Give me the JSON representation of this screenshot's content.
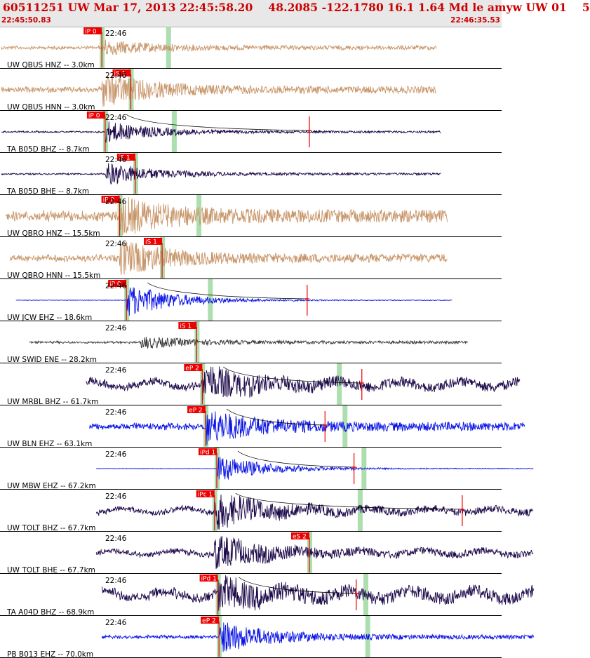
{
  "header": {
    "title": "60511251 UW Mar 17, 2013 22:45:58.20    48.2085 -122.1780 16.1 1.64 Md le amyw UW 01    5",
    "start_time": "22:45:50.83",
    "end_time": "22:46:35.53"
  },
  "time_window": {
    "start": "22:45:50.83",
    "end": "22:46:35.53",
    "duration_s": 44.7,
    "minute_marker": "22:46"
  },
  "colors": {
    "background": "#ffffff",
    "header_bg": "#e8e8e8",
    "header_text": "#cc0000",
    "pick_flag": "#ee0000",
    "pick_band": "#9fd8a0",
    "trace_tan": "#c8966a",
    "trace_navy": "#1d0a4a",
    "trace_blue": "#0a14e6",
    "trace_gray": "#3a3a3a",
    "coda_line": "#000000",
    "separator": "#000000"
  },
  "traces": [
    {
      "label": "UW QBUS HNZ -- 3.0km",
      "marker": "22:46",
      "color": "tan",
      "picks": [
        {
          "label": "iP 0",
          "t": 9.0
        }
      ],
      "start_t": 0.0,
      "end_t": 39.0,
      "onset_t": 9.0,
      "amp": 3,
      "peak": 10,
      "has_coda": false
    },
    {
      "label": "UW QBUS HNN -- 3.0km",
      "marker": "22:46",
      "color": "tan",
      "picks": [
        {
          "label": "iS 1",
          "t": 11.6
        }
      ],
      "start_t": 0.0,
      "end_t": 39.0,
      "onset_t": 9.0,
      "amp": 5,
      "peak": 22,
      "has_coda": false
    },
    {
      "label": "TA B05D BHZ -- 8.7km",
      "marker": "22:46",
      "color": "navy",
      "picks": [
        {
          "label": "iP 0",
          "t": 9.3
        }
      ],
      "start_t": 0.0,
      "end_t": 39.4,
      "onset_t": 9.3,
      "amp": 1.5,
      "peak": 15,
      "has_coda": true,
      "coda_end_t": 27.6
    },
    {
      "label": "TA B05D BHE -- 8.7km",
      "marker": "22:46",
      "color": "navy",
      "picks": [
        {
          "label": "iS 1",
          "t": 12.0
        }
      ],
      "start_t": 0.0,
      "end_t": 39.4,
      "onset_t": 9.3,
      "amp": 1.5,
      "peak": 16,
      "has_coda": false
    },
    {
      "label": "UW QBRO HNZ -- 15.5km",
      "marker": "22:46",
      "color": "tan",
      "picks": [
        {
          "label": "iP 0",
          "t": 10.6
        }
      ],
      "start_t": 0.4,
      "end_t": 40.0,
      "onset_t": 10.6,
      "amp": 9,
      "peak": 22,
      "has_coda": false
    },
    {
      "label": "UW QBRO HNN -- 15.5km",
      "marker": "22:46",
      "color": "tan",
      "picks": [
        {
          "label": "iS 1",
          "t": 14.4
        }
      ],
      "start_t": 0.8,
      "end_t": 40.0,
      "onset_t": 10.6,
      "amp": 6,
      "peak": 22,
      "has_coda": false
    },
    {
      "label": "UW JCW EHZ -- 18.6km",
      "marker": "22:46",
      "color": "blue",
      "picks": [
        {
          "label": "iP 0",
          "t": 11.2
        }
      ],
      "start_t": 1.3,
      "end_t": 40.4,
      "onset_t": 11.2,
      "amp": 0.5,
      "peak": 24,
      "has_coda": true,
      "coda_end_t": 27.4
    },
    {
      "label": "UW SWID ENE -- 28.2km",
      "marker": "22:46",
      "color": "gray",
      "picks": [
        {
          "label": "iS 1",
          "t": 17.5
        }
      ],
      "start_t": 2.5,
      "end_t": 41.8,
      "onset_t": 12.5,
      "amp": 2,
      "peak": 8,
      "has_coda": false
    },
    {
      "label": "UW MRBL BHZ -- 61.7km",
      "marker": "22:46",
      "color": "navy",
      "picks": [
        {
          "label": "eP 2",
          "t": 18.0
        }
      ],
      "start_t": 7.6,
      "end_t": 46.5,
      "onset_t": 18.0,
      "amp": 7,
      "peak": 22,
      "has_coda": true,
      "coda_end_t": 32.3
    },
    {
      "label": "UW BLN EHZ -- 63.1km",
      "marker": "22:46",
      "color": "blue",
      "picks": [
        {
          "label": "eP 2",
          "t": 18.3
        }
      ],
      "start_t": 7.9,
      "end_t": 46.9,
      "onset_t": 18.3,
      "amp": 6,
      "peak": 22,
      "has_coda": true,
      "coda_end_t": 29.0
    },
    {
      "label": "UW MBW EHZ -- 67.2km",
      "marker": "22:46",
      "color": "blue",
      "picks": [
        {
          "label": "iPd 1",
          "t": 19.3
        }
      ],
      "start_t": 8.5,
      "end_t": 47.7,
      "onset_t": 19.3,
      "amp": 0.5,
      "peak": 20,
      "has_coda": true,
      "coda_end_t": 31.6
    },
    {
      "label": "UW TOLT BHZ -- 67.7km",
      "marker": "22:46",
      "color": "navy",
      "picks": [
        {
          "label": "iPc 1",
          "t": 19.1
        }
      ],
      "start_t": 8.5,
      "end_t": 47.7,
      "onset_t": 19.1,
      "amp": 5,
      "peak": 24,
      "has_coda": true,
      "coda_end_t": 41.3
    },
    {
      "label": "UW TOLT BHE -- 67.7km",
      "marker": "22:46",
      "color": "navy",
      "picks": [
        {
          "label": "eS 2",
          "t": 27.6
        }
      ],
      "start_t": 8.5,
      "end_t": 47.7,
      "onset_t": 19.1,
      "amp": 5,
      "peak": 22,
      "has_coda": false
    },
    {
      "label": "TA A04D BHZ -- 68.9km",
      "marker": "22:46",
      "color": "navy",
      "picks": [
        {
          "label": "iPd 1",
          "t": 19.4
        }
      ],
      "start_t": 9.0,
      "end_t": 47.7,
      "onset_t": 19.4,
      "amp": 9,
      "peak": 18,
      "has_coda": true,
      "coda_end_t": 31.8
    },
    {
      "label": "PB B013 EHZ -- 70.0km",
      "marker": "22:46",
      "color": "blue",
      "picks": [
        {
          "label": "eP 2",
          "t": 19.5
        }
      ],
      "start_t": 9.0,
      "end_t": 47.7,
      "onset_t": 19.5,
      "amp": 3,
      "peak": 22,
      "has_coda": false
    }
  ]
}
